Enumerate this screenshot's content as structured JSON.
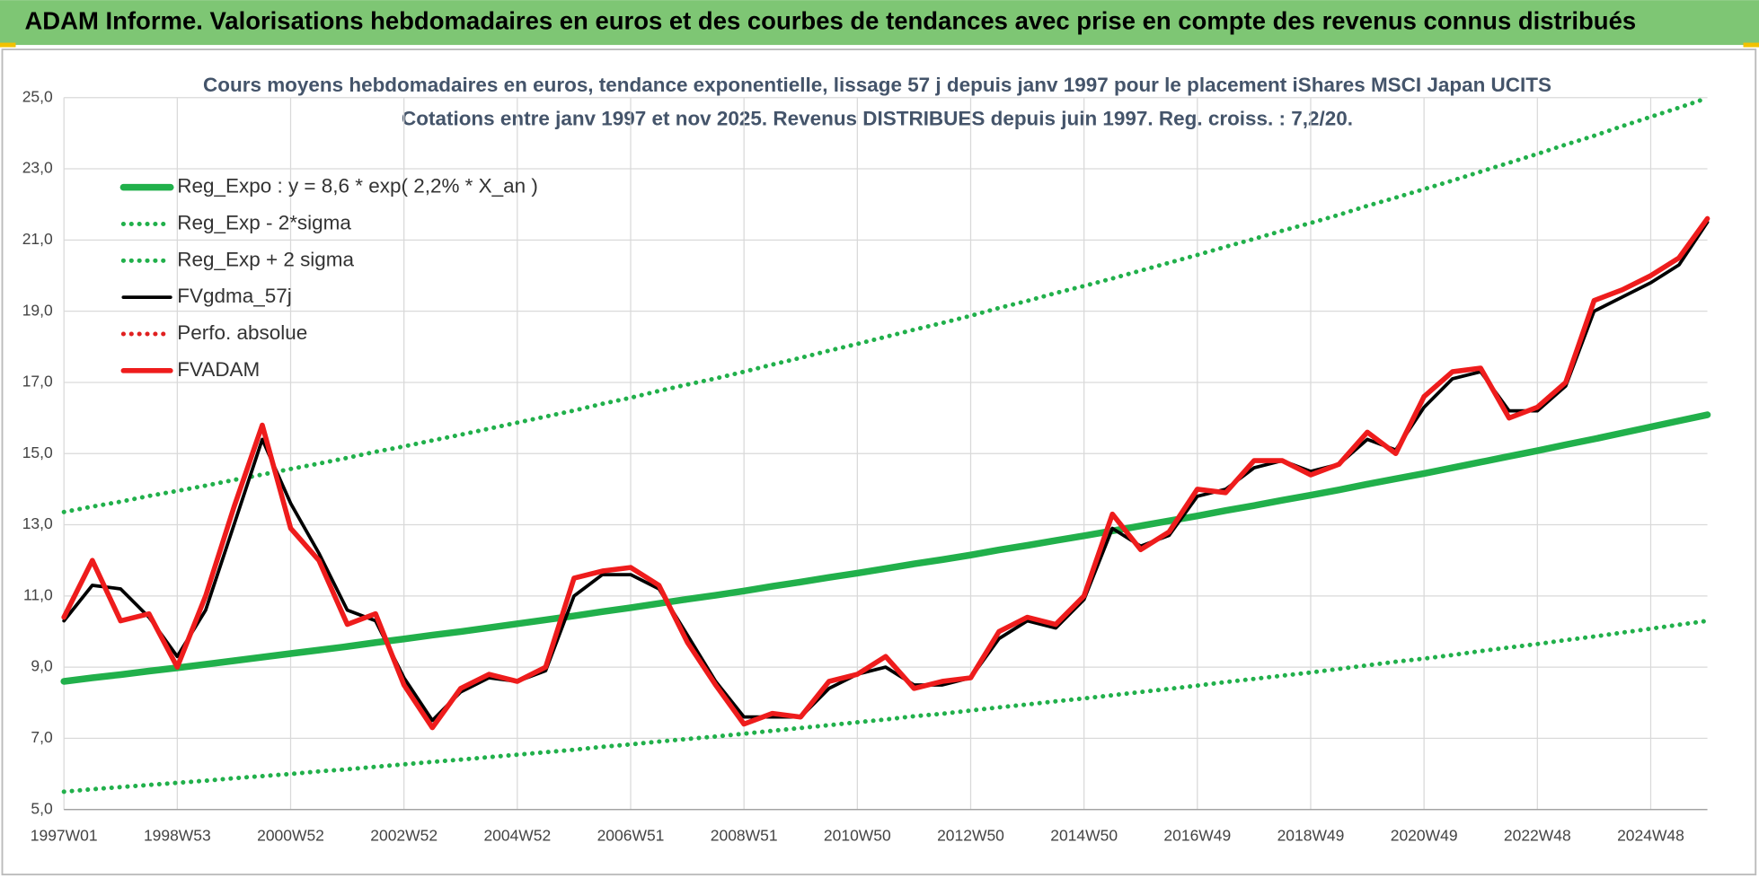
{
  "header": {
    "title": "ADAM Informe. Valorisations hebdomadaires en euros et des courbes de tendances avec prise en compte des revenus connus distribués"
  },
  "chart_data": {
    "type": "line",
    "title": "Cours moyens hebdomadaires en euros, tendance exponentielle, lissage 57 j depuis janv 1997 pour le placement iShares MSCI Japan UCITS",
    "subtitle": "Cotations entre janv 1997 et nov 2025. Revenus DISTRIBUES depuis juin 1997. Reg. croiss. : 7,2/20.",
    "categories": [
      "1997W01",
      null,
      null,
      null,
      "1998W53",
      null,
      null,
      null,
      "2000W52",
      null,
      null,
      null,
      "2002W52",
      null,
      null,
      null,
      "2004W52",
      null,
      null,
      null,
      "2006W51",
      null,
      null,
      null,
      "2008W51",
      null,
      null,
      null,
      "2010W50",
      null,
      null,
      null,
      "2012W50",
      null,
      null,
      null,
      "2014W50",
      null,
      null,
      null,
      "2016W49",
      null,
      null,
      null,
      "2018W49",
      null,
      null,
      null,
      "2020W49",
      null,
      null,
      null,
      "2022W48",
      null,
      null,
      null,
      "2024W48",
      null,
      null
    ],
    "ylim": [
      5,
      25
    ],
    "yticks": [
      {
        "value": 5,
        "label": "5,0"
      },
      {
        "value": 7,
        "label": "7,0"
      },
      {
        "value": 9,
        "label": "9,0"
      },
      {
        "value": 11,
        "label": "11,0"
      },
      {
        "value": 13,
        "label": "13,0"
      },
      {
        "value": 15,
        "label": "15,0"
      },
      {
        "value": 17,
        "label": "17,0"
      },
      {
        "value": 19,
        "label": "19,0"
      },
      {
        "value": 21,
        "label": "21,0"
      },
      {
        "value": 23,
        "label": "23,0"
      },
      {
        "value": 25,
        "label": "25,0"
      }
    ],
    "grid": true,
    "legend": "top-left",
    "series": [
      {
        "name": "Reg_Expo : y = 8,6 * exp( 2,2% *  X_an )",
        "color": "#21b04b",
        "style": "solid",
        "values": [
          8.6,
          8.7,
          8.79,
          8.89,
          8.98,
          9.08,
          9.18,
          9.28,
          9.38,
          9.48,
          9.58,
          9.69,
          9.79,
          9.9,
          10.0,
          10.11,
          10.22,
          10.33,
          10.44,
          10.56,
          10.67,
          10.79,
          10.91,
          11.02,
          11.14,
          11.27,
          11.39,
          11.52,
          11.64,
          11.77,
          11.9,
          12.02,
          12.15,
          12.29,
          12.42,
          12.56,
          12.69,
          12.83,
          12.97,
          13.11,
          13.25,
          13.4,
          13.54,
          13.69,
          13.83,
          13.98,
          14.14,
          14.29,
          14.44,
          14.6,
          14.76,
          14.92,
          15.08,
          15.25,
          15.41,
          15.58,
          15.75,
          15.92,
          16.09
        ]
      },
      {
        "name": "Reg_Exp - 2*sigma",
        "color": "#21b04b",
        "style": "dotted",
        "values": [
          5.5,
          5.57,
          5.63,
          5.69,
          5.75,
          5.81,
          5.88,
          5.94,
          6.0,
          6.07,
          6.13,
          6.2,
          6.27,
          6.34,
          6.4,
          6.47,
          6.54,
          6.61,
          6.68,
          6.76,
          6.83,
          6.91,
          6.98,
          7.05,
          7.13,
          7.21,
          7.29,
          7.37,
          7.45,
          7.53,
          7.62,
          7.69,
          7.78,
          7.87,
          7.95,
          8.04,
          8.12,
          8.21,
          8.3,
          8.39,
          8.48,
          8.58,
          8.67,
          8.76,
          8.85,
          8.95,
          9.05,
          9.15,
          9.24,
          9.34,
          9.45,
          9.55,
          9.65,
          9.76,
          9.86,
          9.97,
          10.08,
          10.19,
          10.3
        ]
      },
      {
        "name": "Reg_Exp + 2 sigma",
        "color": "#21b04b",
        "style": "dotted",
        "values": [
          13.36,
          13.51,
          13.65,
          13.81,
          13.95,
          14.1,
          14.26,
          14.41,
          14.57,
          14.72,
          14.88,
          15.05,
          15.2,
          15.37,
          15.53,
          15.7,
          15.87,
          16.04,
          16.21,
          16.4,
          16.57,
          16.76,
          16.94,
          17.11,
          17.3,
          17.5,
          17.69,
          17.89,
          18.08,
          18.28,
          18.48,
          18.67,
          18.87,
          19.09,
          19.29,
          19.51,
          19.71,
          19.92,
          20.14,
          20.36,
          20.58,
          20.81,
          21.03,
          21.26,
          21.48,
          21.71,
          21.96,
          22.19,
          22.43,
          22.67,
          22.92,
          23.17,
          23.42,
          23.68,
          23.93,
          24.2,
          24.46,
          24.72,
          24.99
        ]
      },
      {
        "name": "FVgdma_57j",
        "color": "#000000",
        "style": "solid",
        "values": [
          10.3,
          11.3,
          11.2,
          10.4,
          9.3,
          10.6,
          13.0,
          15.4,
          13.6,
          12.2,
          10.6,
          10.3,
          8.7,
          7.5,
          8.3,
          8.7,
          8.6,
          8.9,
          11.0,
          11.6,
          11.6,
          11.2,
          9.9,
          8.6,
          7.6,
          7.6,
          7.6,
          8.4,
          8.8,
          9.0,
          8.5,
          8.5,
          8.7,
          9.8,
          10.3,
          10.1,
          10.9,
          12.9,
          12.4,
          12.7,
          13.8,
          14.0,
          14.6,
          14.8,
          14.5,
          14.7,
          15.4,
          15.1,
          16.3,
          17.1,
          17.3,
          16.2,
          16.2,
          16.9,
          19.0,
          19.4,
          19.8,
          20.3,
          21.5
        ]
      },
      {
        "name": "Perfo. absolue",
        "color": "#e02020",
        "style": "dotted",
        "values": [
          null,
          null,
          null,
          null,
          null,
          null,
          null,
          null,
          null,
          null,
          null,
          null,
          null,
          null,
          null,
          null,
          null,
          null,
          null,
          null,
          null,
          null,
          null,
          null,
          null,
          null,
          null,
          null,
          null,
          null,
          null,
          null,
          null,
          null,
          null,
          null,
          null,
          null,
          null,
          null,
          null,
          null,
          null,
          null,
          null,
          null,
          null,
          null,
          null,
          null,
          null,
          null,
          null,
          null,
          null,
          null,
          null,
          null,
          null
        ]
      },
      {
        "name": "FVADAM",
        "color": "#ee1c1c",
        "style": "solid",
        "values": [
          10.4,
          12.0,
          10.3,
          10.5,
          9.0,
          11.0,
          13.5,
          15.8,
          12.9,
          12.0,
          10.2,
          10.5,
          8.5,
          7.3,
          8.4,
          8.8,
          8.6,
          9.0,
          11.5,
          11.7,
          11.8,
          11.3,
          9.7,
          8.5,
          7.4,
          7.7,
          7.6,
          8.6,
          8.8,
          9.3,
          8.4,
          8.6,
          8.7,
          10.0,
          10.4,
          10.2,
          11.0,
          13.3,
          12.3,
          12.8,
          14.0,
          13.9,
          14.8,
          14.8,
          14.4,
          14.7,
          15.6,
          15.0,
          16.6,
          17.3,
          17.4,
          16.0,
          16.3,
          17.0,
          19.3,
          19.6,
          20.0,
          20.5,
          21.6
        ]
      }
    ]
  }
}
